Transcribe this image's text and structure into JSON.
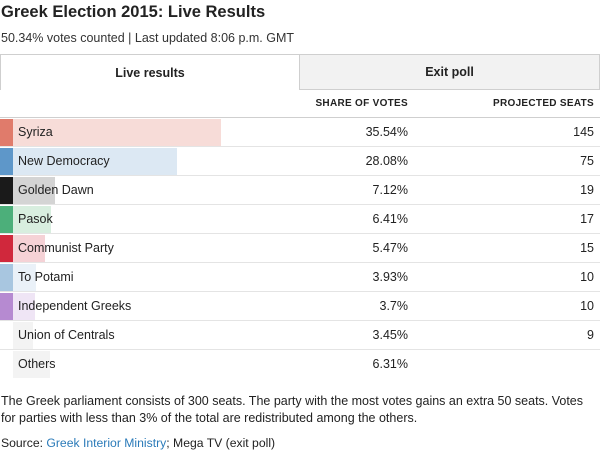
{
  "header": {
    "title": "Greek Election 2015: Live Results",
    "subtitle": "50.34% votes counted | Last updated 8:06 p.m. GMT"
  },
  "tabs": [
    {
      "label": "Live results",
      "active": true
    },
    {
      "label": "Exit poll",
      "active": false
    }
  ],
  "table": {
    "columns": {
      "share": "SHARE OF VOTES",
      "seats": "PROJECTED SEATS"
    },
    "rows": [
      {
        "party": "Syriza",
        "share": "35.54%",
        "seats": "145",
        "share_value": 35.54,
        "color": "#e07b6b",
        "bar_color": "#f7dcd8"
      },
      {
        "party": "New Democracy",
        "share": "28.08%",
        "seats": "75",
        "share_value": 28.08,
        "color": "#5e97c9",
        "bar_color": "#dce8f3"
      },
      {
        "party": "Golden Dawn",
        "share": "7.12%",
        "seats": "19",
        "share_value": 7.12,
        "color": "#1a1a1a",
        "bar_color": "#d4d4d4"
      },
      {
        "party": "Pasok",
        "share": "6.41%",
        "seats": "17",
        "share_value": 6.41,
        "color": "#4caf7a",
        "bar_color": "#d8eedf"
      },
      {
        "party": "Communist Party",
        "share": "5.47%",
        "seats": "15",
        "share_value": 5.47,
        "color": "#d0283c",
        "bar_color": "#f5d2d6"
      },
      {
        "party": "To Potami",
        "share": "3.93%",
        "seats": "10",
        "share_value": 3.93,
        "color": "#a8c6e0",
        "bar_color": "#eaf1f8"
      },
      {
        "party": "Independent Greeks",
        "share": "3.7%",
        "seats": "10",
        "share_value": 3.7,
        "color": "#b68ad1",
        "bar_color": "#efe5f5"
      },
      {
        "party": "Union of Centrals",
        "share": "3.45%",
        "seats": "9",
        "share_value": 3.45,
        "color": "#ffffff",
        "bar_color": "#f3f3f3"
      },
      {
        "party": "Others",
        "share": "6.31%",
        "seats": "",
        "share_value": 6.31,
        "color": "#ffffff",
        "bar_color": "#f3f3f3"
      }
    ]
  },
  "footer": {
    "note": "The Greek parliament consists of 300 seats. The party with the most votes gains an extra 50 seats. Votes for parties with less than 3% of the total are redistributed among the others.",
    "source_prefix": "Source: ",
    "source_link": "Greek Interior Ministry",
    "source_suffix": "; Mega TV (exit poll)"
  }
}
